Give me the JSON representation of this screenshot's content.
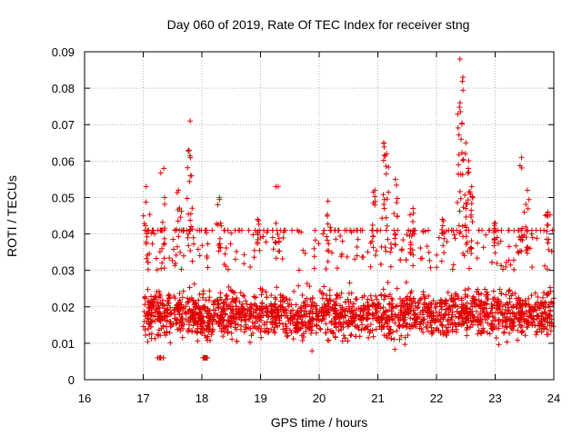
{
  "chart_data": {
    "type": "scatter",
    "title": "Day 060 of 2019, Rate Of TEC Index for receiver stng",
    "xlabel": "GPS time / hours",
    "ylabel": "ROTI / TECUs",
    "xlim": [
      16,
      24
    ],
    "ylim": [
      0,
      0.09
    ],
    "xticks": [
      "16",
      "17",
      "18",
      "19",
      "20",
      "21",
      "22",
      "23",
      "24"
    ],
    "yticks": [
      "0",
      "0.01",
      "0.02",
      "0.03",
      "0.04",
      "0.05",
      "0.06",
      "0.07",
      "0.08",
      "0.09"
    ],
    "grid": true,
    "marker": "+",
    "color": "#e00000",
    "series": [
      {
        "name": "ROTI",
        "x_start": 17.0,
        "x_end": 24.0,
        "typical_range": [
          0.008,
          0.035
        ],
        "median": 0.018,
        "spikes": [
          {
            "x": 17.05,
            "y": 0.053
          },
          {
            "x": 17.35,
            "y": 0.058
          },
          {
            "x": 17.6,
            "y": 0.052
          },
          {
            "x": 17.8,
            "y": 0.071
          },
          {
            "x": 17.78,
            "y": 0.063
          },
          {
            "x": 18.3,
            "y": 0.05
          },
          {
            "x": 18.95,
            "y": 0.044
          },
          {
            "x": 19.3,
            "y": 0.053
          },
          {
            "x": 20.15,
            "y": 0.049
          },
          {
            "x": 20.95,
            "y": 0.052
          },
          {
            "x": 21.1,
            "y": 0.065
          },
          {
            "x": 21.15,
            "y": 0.062
          },
          {
            "x": 21.3,
            "y": 0.055
          },
          {
            "x": 21.6,
            "y": 0.047
          },
          {
            "x": 22.1,
            "y": 0.044
          },
          {
            "x": 22.4,
            "y": 0.088
          },
          {
            "x": 22.45,
            "y": 0.083
          },
          {
            "x": 22.4,
            "y": 0.076
          },
          {
            "x": 22.5,
            "y": 0.065
          },
          {
            "x": 22.55,
            "y": 0.057
          },
          {
            "x": 22.6,
            "y": 0.053
          },
          {
            "x": 23.0,
            "y": 0.043
          },
          {
            "x": 23.45,
            "y": 0.061
          },
          {
            "x": 23.55,
            "y": 0.052
          },
          {
            "x": 23.9,
            "y": 0.046
          },
          {
            "x": 18.05,
            "y": 0.006
          },
          {
            "x": 17.3,
            "y": 0.006
          }
        ]
      }
    ]
  }
}
